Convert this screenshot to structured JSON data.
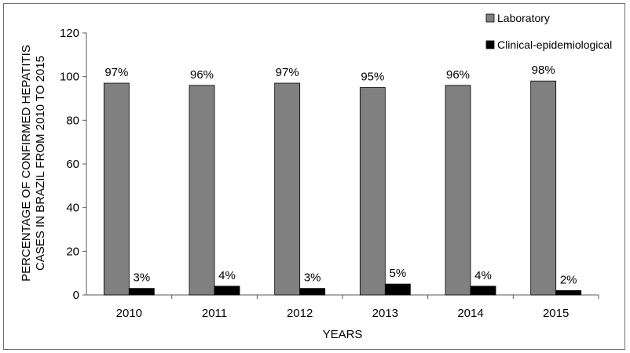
{
  "chart_data": {
    "type": "bar",
    "categories": [
      "2010",
      "2011",
      "2012",
      "2013",
      "2014",
      "2015"
    ],
    "series": [
      {
        "name": "Laboratory",
        "values": [
          97,
          96,
          97,
          95,
          96,
          98
        ],
        "labels": [
          "97%",
          "96%",
          "97%",
          "95%",
          "96%",
          "98%"
        ],
        "color": "#808080"
      },
      {
        "name": "Clinical-epidemiological",
        "values": [
          3,
          4,
          3,
          5,
          4,
          2
        ],
        "labels": [
          "3%",
          "4%",
          "3%",
          "5%",
          "4%",
          "2%"
        ],
        "color": "#000000"
      }
    ],
    "xlabel": "YEARS",
    "ylabel_lines": [
      "PERCENTAGE OF CONFIRMED HEPATITIS",
      "CASES IN BRAZIL FROM 2010 TO 2015"
    ],
    "ylim": [
      0,
      120
    ],
    "yticks": [
      0,
      20,
      40,
      60,
      80,
      100,
      120
    ],
    "grid": false,
    "legend_position": "top-right"
  }
}
